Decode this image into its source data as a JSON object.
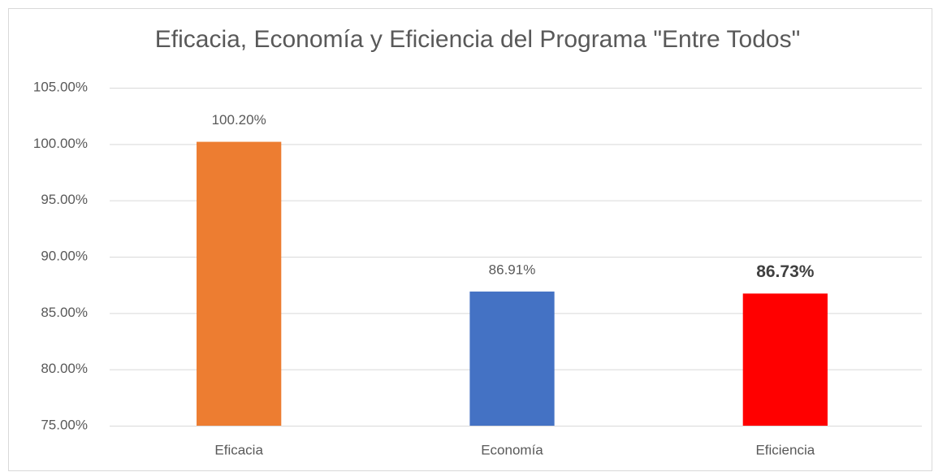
{
  "chart_data": {
    "type": "bar",
    "title": "Eficacia, Economía y Eficiencia del Programa \"Entre Todos\"",
    "categories": [
      "Eficacia",
      "Economía",
      "Eficiencia"
    ],
    "values": [
      100.2,
      86.91,
      86.73
    ],
    "value_labels": [
      "100.20%",
      "86.91%",
      "86.73%"
    ],
    "value_label_bold": [
      false,
      false,
      true
    ],
    "colors": [
      "#ed7d31",
      "#4472c4",
      "#ff0000"
    ],
    "ylim": [
      75,
      105
    ],
    "yticks": [
      {
        "value": 75,
        "label": "75.00%"
      },
      {
        "value": 80,
        "label": "80.00%"
      },
      {
        "value": 85,
        "label": "85.00%"
      },
      {
        "value": 90,
        "label": "90.00%"
      },
      {
        "value": 95,
        "label": "95.00%"
      },
      {
        "value": 100,
        "label": "100.00%"
      },
      {
        "value": 105,
        "label": "105.00%"
      }
    ],
    "grid": true
  }
}
